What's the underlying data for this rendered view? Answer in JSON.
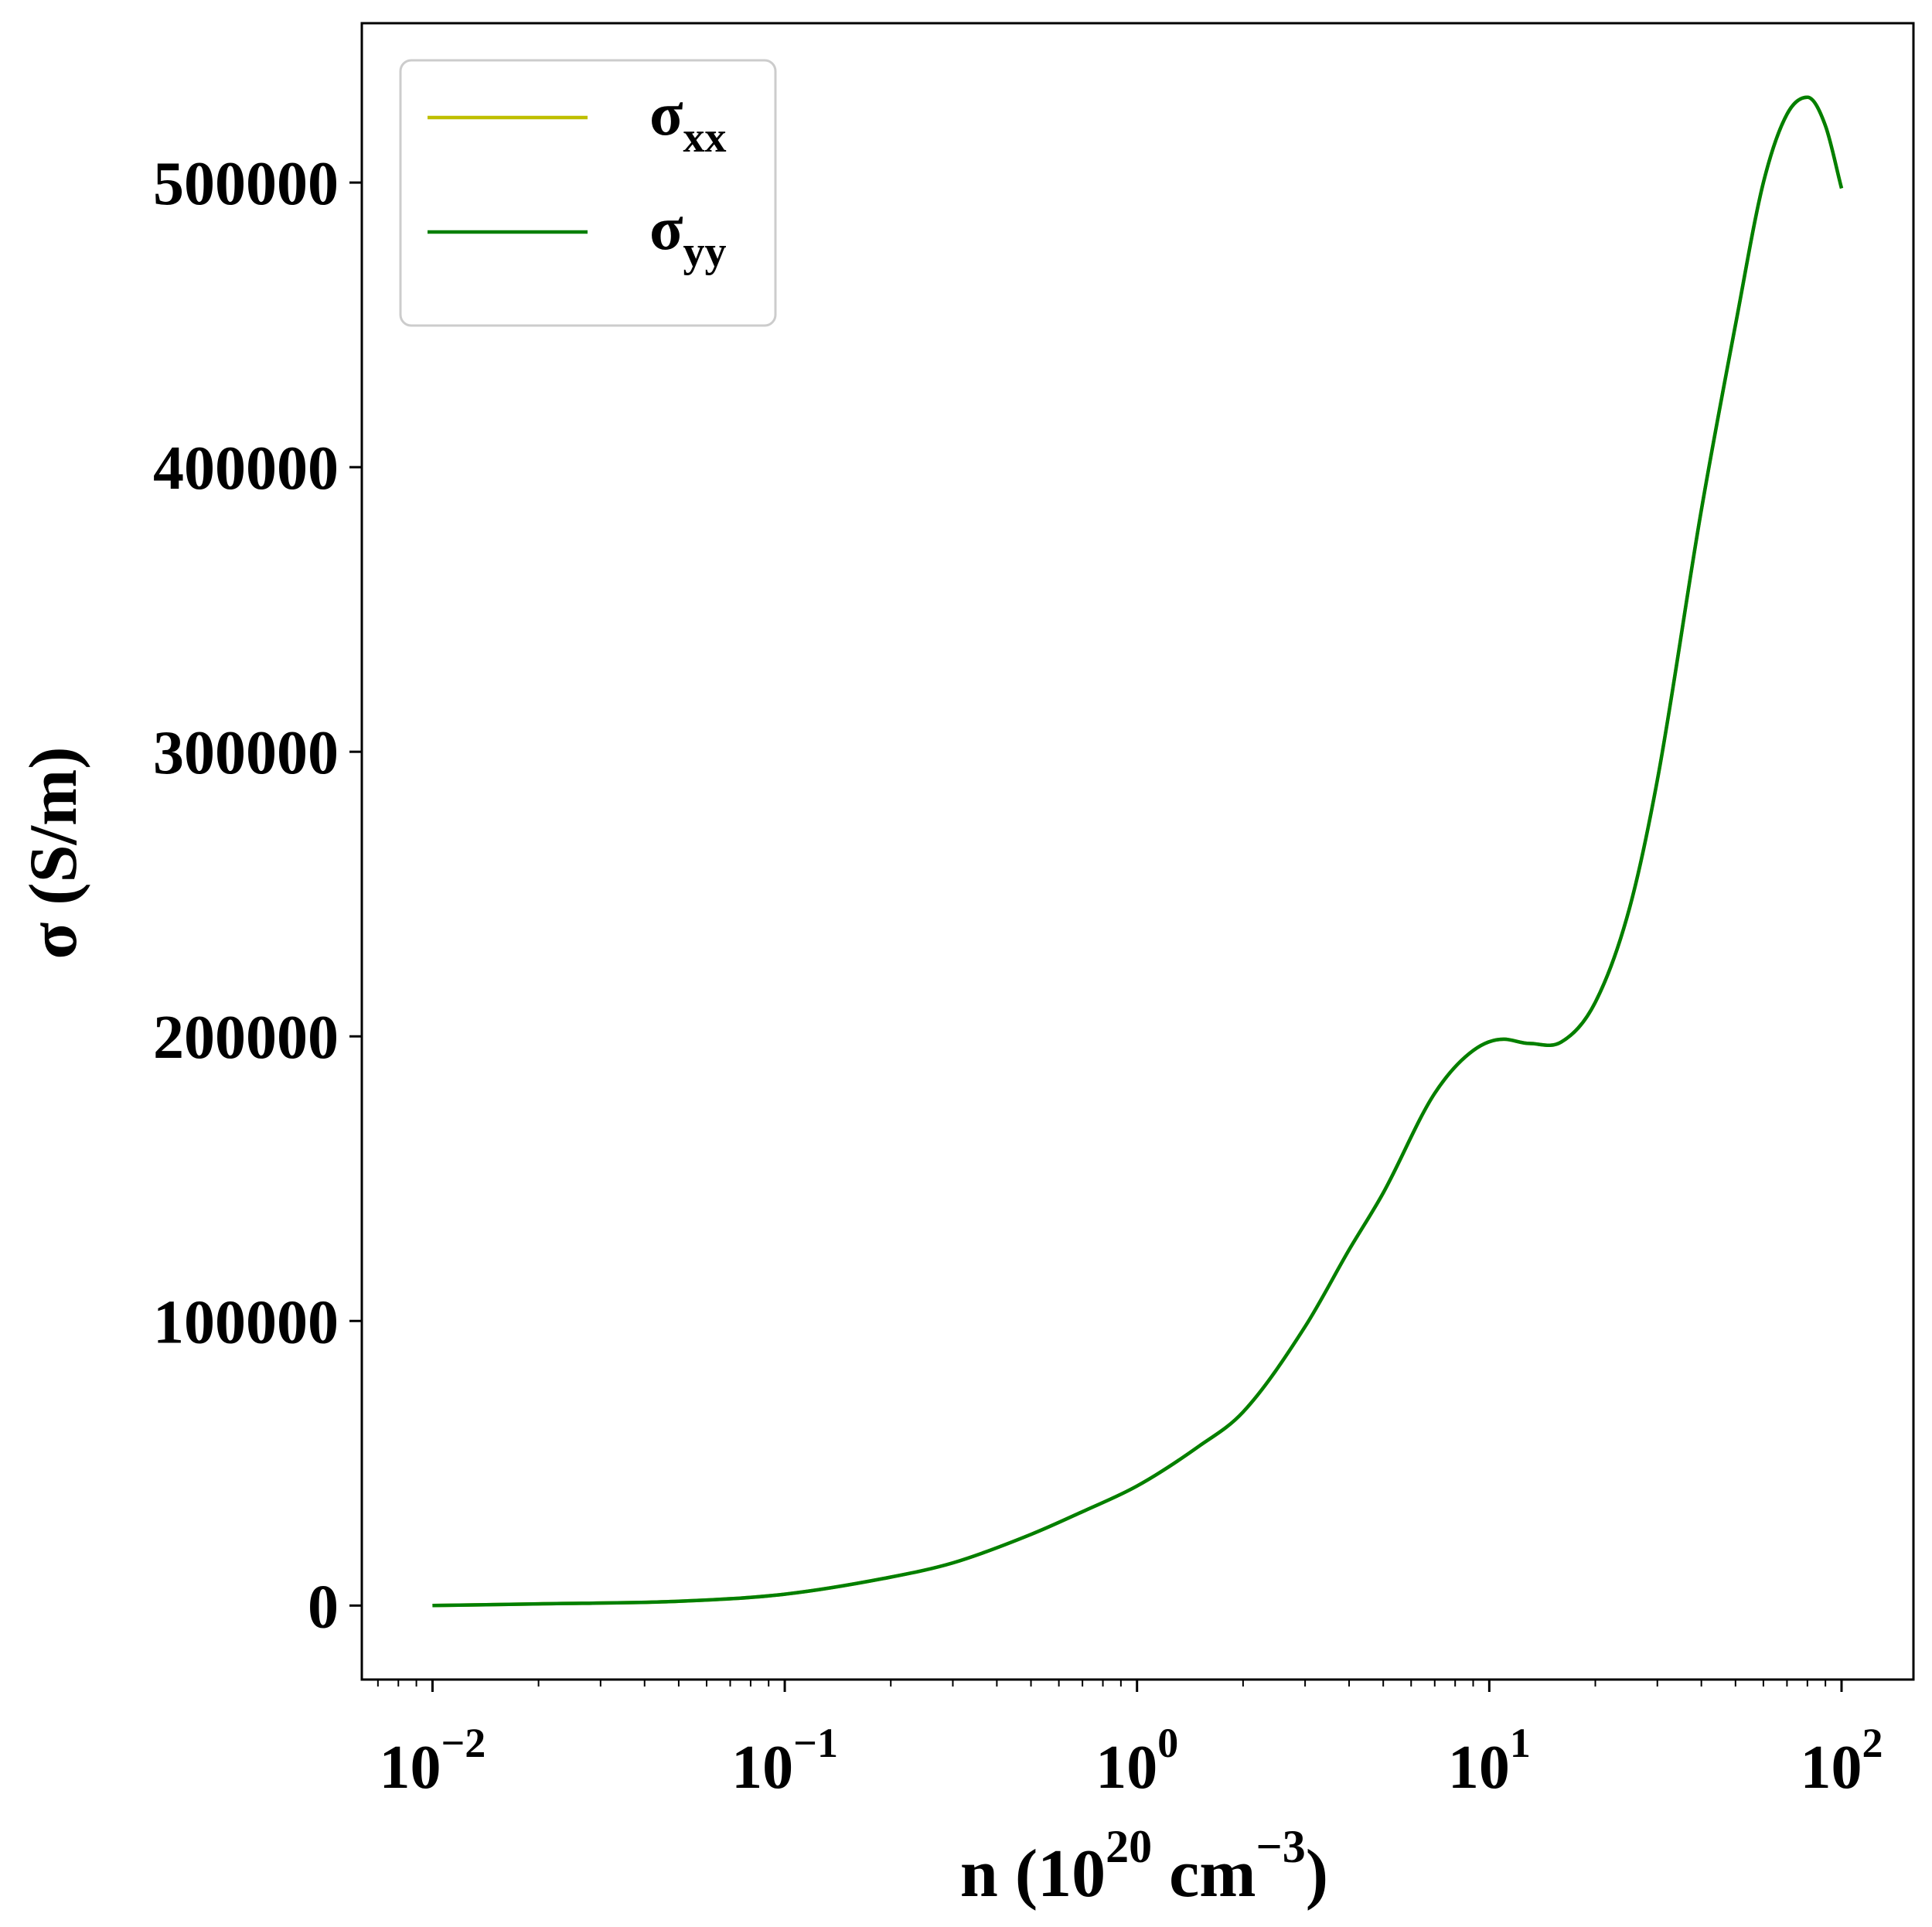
{
  "chart_data": {
    "type": "line",
    "title": "",
    "xlabel": {
      "base": "n (10",
      "sup1": "20",
      "mid": " cm",
      "sup2": "−3",
      "end": ")"
    },
    "ylabel": "σ (S/m)",
    "x_scale": "log",
    "xlim": [
      0.0063,
      160
    ],
    "ylim": [
      -26000,
      556000
    ],
    "grid": false,
    "legend_position": "top-left",
    "x_ticks": [
      {
        "value": 0.01,
        "base": "10",
        "exp": "−2"
      },
      {
        "value": 0.1,
        "base": "10",
        "exp": "−1"
      },
      {
        "value": 1,
        "base": "10",
        "exp": "0"
      },
      {
        "value": 10,
        "base": "10",
        "exp": "1"
      },
      {
        "value": 100,
        "base": "10",
        "exp": "2"
      }
    ],
    "y_ticks": [
      {
        "value": 0,
        "label": "0"
      },
      {
        "value": 100000,
        "label": "100000"
      },
      {
        "value": 200000,
        "label": "200000"
      },
      {
        "value": 300000,
        "label": "300000"
      },
      {
        "value": 400000,
        "label": "400000"
      },
      {
        "value": 500000,
        "label": "500000"
      }
    ],
    "series": [
      {
        "name": "σ",
        "subscript": "xx",
        "color": "#bfbf00",
        "x": [
          0.01,
          0.02,
          0.05,
          0.1,
          0.2,
          0.3,
          0.5,
          0.7,
          1,
          1.5,
          2,
          3,
          4,
          5,
          7,
          9,
          11,
          13,
          16,
          20,
          25,
          30,
          40,
          50,
          60,
          70,
          80,
          90,
          100
        ],
        "y": [
          0,
          600,
          1500,
          4000,
          10000,
          15000,
          25000,
          33000,
          42000,
          56000,
          68000,
          98000,
          125000,
          145000,
          180000,
          195000,
          199000,
          197500,
          198000,
          212000,
          245000,
          290000,
          385000,
          450000,
          500000,
          524000,
          530000,
          520000,
          498000
        ]
      },
      {
        "name": "σ",
        "subscript": "yy",
        "color": "#007f00",
        "x": [
          0.01,
          0.02,
          0.05,
          0.1,
          0.2,
          0.3,
          0.5,
          0.7,
          1,
          1.5,
          2,
          3,
          4,
          5,
          7,
          9,
          11,
          13,
          16,
          20,
          25,
          30,
          40,
          50,
          60,
          70,
          80,
          90,
          100
        ],
        "y": [
          0,
          600,
          1500,
          4000,
          10000,
          15000,
          25000,
          33000,
          42000,
          56000,
          68000,
          98000,
          125000,
          145000,
          180000,
          195000,
          199000,
          197500,
          198000,
          212000,
          245000,
          290000,
          385000,
          450000,
          500000,
          524000,
          530000,
          520000,
          498000
        ]
      }
    ]
  }
}
